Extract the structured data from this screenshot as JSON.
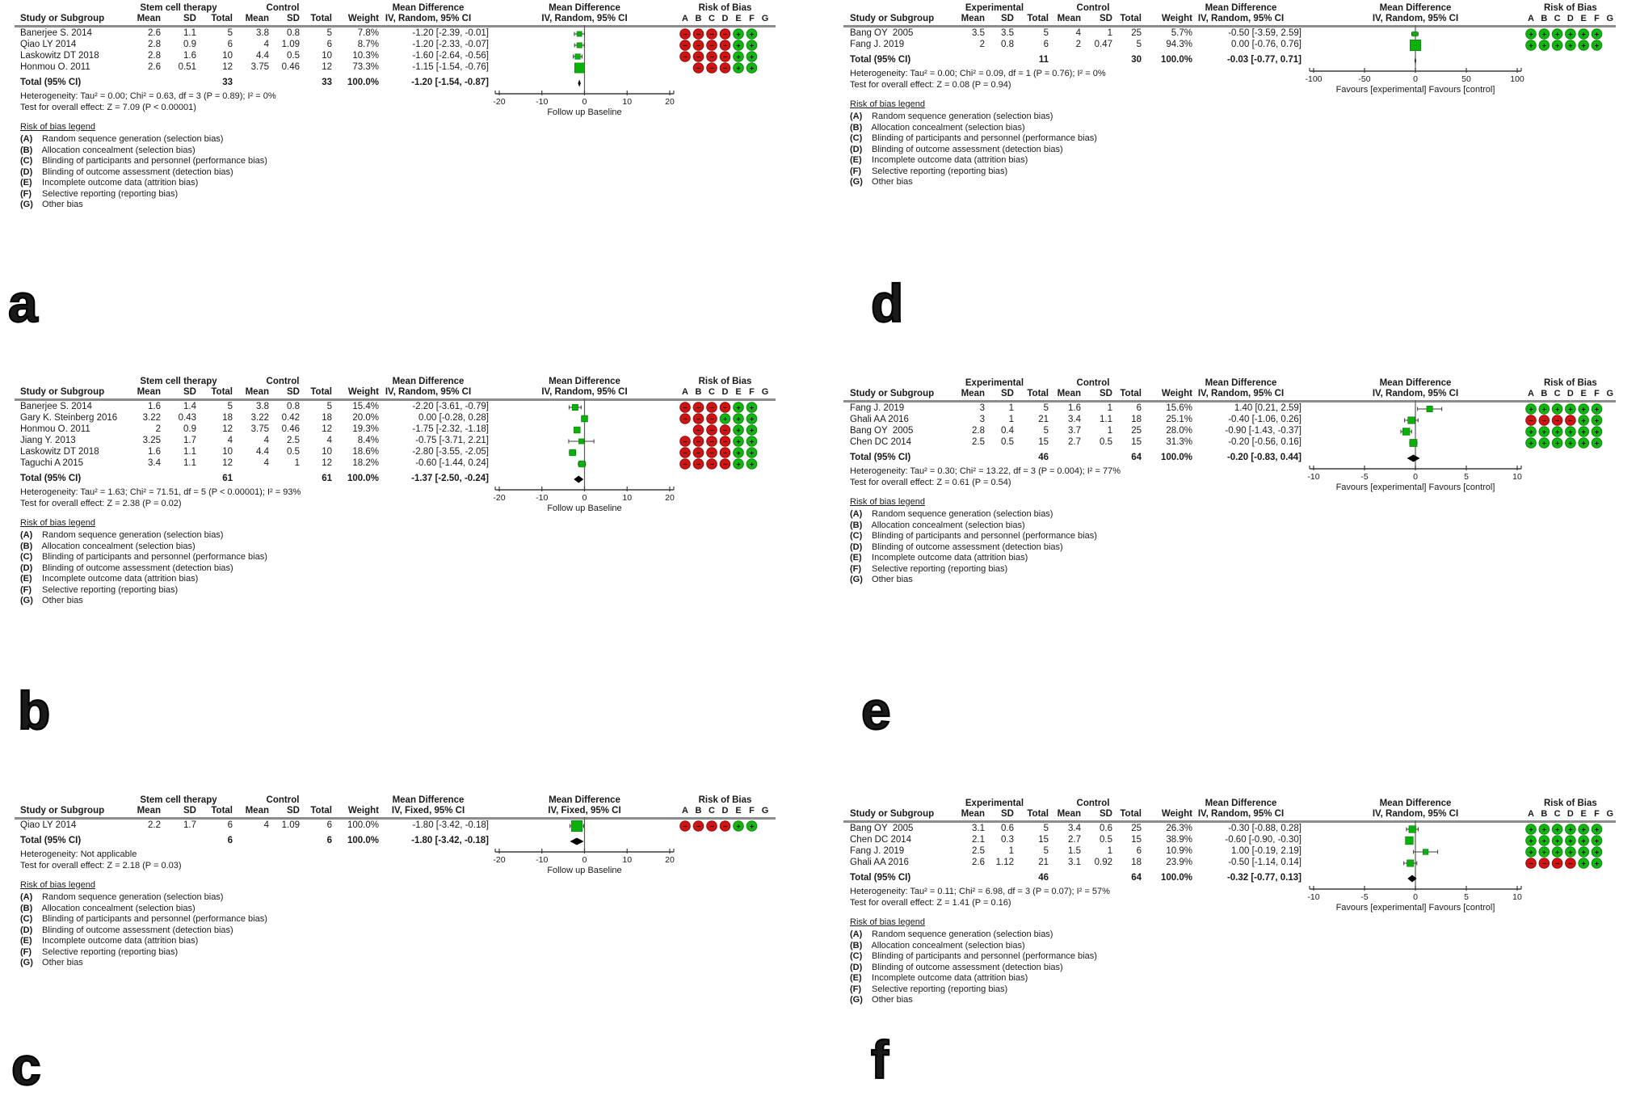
{
  "figure_title": "Forest plots of mean difference with risk of bias",
  "colors": {
    "low_risk": "#12b512",
    "low_risk_border": "#0a870a",
    "high_risk": "#d01313",
    "high_risk_border": "#8f0d0d",
    "marker_green": "#0cb00c",
    "marker_border": "#077a07",
    "diamond": "#000000",
    "axis": "#3c3c3c",
    "rule_gray": "#8c8c8c"
  },
  "rob_header": {
    "title": "Risk of Bias",
    "columns": [
      "A",
      "B",
      "C",
      "D",
      "E",
      "F",
      "G"
    ]
  },
  "rob_legend": {
    "title": "Risk of bias legend",
    "items": [
      {
        "key": "(A)",
        "text": " Random sequence generation (selection bias)"
      },
      {
        "key": "(B)",
        "text": " Allocation concealment (selection bias)"
      },
      {
        "key": "(C)",
        "text": " Blinding of participants and personnel (performance bias)"
      },
      {
        "key": "(D)",
        "text": " Blinding of outcome assessment (detection bias)"
      },
      {
        "key": "(E)",
        "text": " Incomplete outcome data (attrition bias)"
      },
      {
        "key": "(F)",
        "text": " Selective reporting (reporting bias)"
      },
      {
        "key": "(G)",
        "text": " Other bias"
      }
    ]
  },
  "chart_data": [
    {
      "panel_label": "a",
      "type": "forest",
      "columns": {
        "study": "Study or Subgroup",
        "group1": "Stem cell therapy",
        "group2": "Control",
        "sub": [
          "Mean",
          "SD",
          "Total"
        ],
        "weight": "Weight",
        "effect": "Mean Difference",
        "effect_sub": "IV, Random, 95% CI"
      },
      "studies": [
        {
          "name": "Banerjee S. 2014",
          "g1": [
            "2.6",
            "1.1",
            "5"
          ],
          "g2": [
            "3.8",
            "0.8",
            "5"
          ],
          "weight": "7.8%",
          "weight_val": 7.8,
          "est": -1.2,
          "lo": -2.39,
          "hi": -0.01,
          "ci_text": "-1.20 [-2.39, -0.01]",
          "rob": [
            "-",
            "-",
            "-",
            "-",
            "+",
            "+",
            ""
          ]
        },
        {
          "name": "Qiao LY 2014",
          "g1": [
            "2.8",
            "0.9",
            "6"
          ],
          "g2": [
            "4",
            "1.09",
            "6"
          ],
          "weight": "8.7%",
          "weight_val": 8.7,
          "est": -1.2,
          "lo": -2.33,
          "hi": -0.07,
          "ci_text": "-1.20 [-2.33, -0.07]",
          "rob": [
            "-",
            "-",
            "-",
            "-",
            "+",
            "+",
            ""
          ]
        },
        {
          "name": "Laskowitz DT 2018",
          "g1": [
            "2.8",
            "1.6",
            "10"
          ],
          "g2": [
            "4.4",
            "0.5",
            "10"
          ],
          "weight": "10.3%",
          "weight_val": 10.3,
          "est": -1.6,
          "lo": -2.64,
          "hi": -0.56,
          "ci_text": "-1.60 [-2.64, -0.56]",
          "rob": [
            "-",
            "-",
            "-",
            "-",
            "+",
            "+",
            ""
          ]
        },
        {
          "name": "Honmou O. 2011",
          "g1": [
            "2.6",
            "0.51",
            "12"
          ],
          "g2": [
            "3.75",
            "0.46",
            "12"
          ],
          "weight": "73.3%",
          "weight_val": 73.3,
          "est": -1.15,
          "lo": -1.54,
          "hi": -0.76,
          "ci_text": "-1.15 [-1.54, -0.76]",
          "rob": [
            "",
            "-",
            "-",
            "-",
            "+",
            "+",
            ""
          ]
        }
      ],
      "total": {
        "label": "Total (95% CI)",
        "n1": "33",
        "n2": "33",
        "weight": "100.0%",
        "est": -1.2,
        "lo": -1.54,
        "hi": -0.87,
        "ci_text": "-1.20 [-1.54, -0.87]"
      },
      "heterogeneity": "Heterogeneity: Tau² = 0.00; Chi² = 0.63, df = 3 (P = 0.89); I² = 0%",
      "overall_test": "Test for overall effect: Z = 7.09 (P < 0.00001)",
      "axis": {
        "min": -20,
        "max": 20,
        "ticks": [
          -20,
          -10,
          0,
          10,
          20
        ],
        "label": "Follow up  Baseline"
      }
    },
    {
      "panel_label": "b",
      "type": "forest",
      "columns": {
        "study": "Study or Subgroup",
        "group1": "Stem cell therapy",
        "group2": "Control",
        "sub": [
          "Mean",
          "SD",
          "Total"
        ],
        "weight": "Weight",
        "effect": "Mean Difference",
        "effect_sub": "IV, Random, 95% CI"
      },
      "studies": [
        {
          "name": "Banerjee S. 2014",
          "g1": [
            "1.6",
            "1.4",
            "5"
          ],
          "g2": [
            "3.8",
            "0.8",
            "5"
          ],
          "weight": "15.4%",
          "weight_val": 15.4,
          "est": -2.2,
          "lo": -3.61,
          "hi": -0.79,
          "ci_text": "-2.20 [-3.61, -0.79]",
          "rob": [
            "-",
            "-",
            "-",
            "-",
            "+",
            "+",
            ""
          ]
        },
        {
          "name": "Gary K. Steinberg 2016",
          "g1": [
            "3.22",
            "0.43",
            "18"
          ],
          "g2": [
            "3.22",
            "0.42",
            "18"
          ],
          "weight": "20.0%",
          "weight_val": 20.0,
          "est": 0.0,
          "lo": -0.28,
          "hi": 0.28,
          "ci_text": "0.00 [-0.28, 0.28]",
          "rob": [
            "-",
            "-",
            "-",
            "+",
            "+",
            "+",
            ""
          ]
        },
        {
          "name": "Honmou O. 2011",
          "g1": [
            "2",
            "0.9",
            "12"
          ],
          "g2": [
            "3.75",
            "0.46",
            "12"
          ],
          "weight": "19.3%",
          "weight_val": 19.3,
          "est": -1.75,
          "lo": -2.32,
          "hi": -1.18,
          "ci_text": "-1.75 [-2.32, -1.18]",
          "rob": [
            "",
            "-",
            "-",
            "-",
            "+",
            "+",
            ""
          ]
        },
        {
          "name": "Jiang Y. 2013",
          "g1": [
            "3.25",
            "1.7",
            "4"
          ],
          "g2": [
            "4",
            "2.5",
            "4"
          ],
          "weight": "8.4%",
          "weight_val": 8.4,
          "est": -0.75,
          "lo": -3.71,
          "hi": 2.21,
          "ci_text": "-0.75 [-3.71, 2.21]",
          "rob": [
            "-",
            "-",
            "-",
            "-",
            "+",
            "+",
            ""
          ]
        },
        {
          "name": "Laskowitz DT 2018",
          "g1": [
            "1.6",
            "1.1",
            "10"
          ],
          "g2": [
            "4.4",
            "0.5",
            "10"
          ],
          "weight": "18.6%",
          "weight_val": 18.6,
          "est": -2.8,
          "lo": -3.55,
          "hi": -2.05,
          "ci_text": "-2.80 [-3.55, -2.05]",
          "rob": [
            "-",
            "-",
            "-",
            "-",
            "+",
            "+",
            ""
          ]
        },
        {
          "name": "Taguchi A 2015",
          "g1": [
            "3.4",
            "1.1",
            "12"
          ],
          "g2": [
            "4",
            "1",
            "12"
          ],
          "weight": "18.2%",
          "weight_val": 18.2,
          "est": -0.6,
          "lo": -1.44,
          "hi": 0.24,
          "ci_text": "-0.60 [-1.44, 0.24]",
          "rob": [
            "-",
            "-",
            "-",
            "-",
            "+",
            "+",
            ""
          ]
        }
      ],
      "total": {
        "label": "Total (95% CI)",
        "n1": "61",
        "n2": "61",
        "weight": "100.0%",
        "est": -1.37,
        "lo": -2.5,
        "hi": -0.24,
        "ci_text": "-1.37 [-2.50, -0.24]"
      },
      "heterogeneity": "Heterogeneity: Tau² = 1.63; Chi² = 71.51, df = 5 (P < 0.00001); I² = 93%",
      "overall_test": "Test for overall effect: Z = 2.38 (P = 0.02)",
      "axis": {
        "min": -20,
        "max": 20,
        "ticks": [
          -20,
          -10,
          0,
          10,
          20
        ],
        "label": "Follow up  Baseline"
      }
    },
    {
      "panel_label": "c",
      "type": "forest",
      "columns": {
        "study": "Study or Subgroup",
        "group1": "Stem cell therapy",
        "group2": "Control",
        "sub": [
          "Mean",
          "SD",
          "Total"
        ],
        "weight": "Weight",
        "effect": "Mean Difference",
        "effect_sub": "IV, Fixed, 95% CI"
      },
      "studies": [
        {
          "name": "Qiao LY 2014",
          "g1": [
            "2.2",
            "1.7",
            "6"
          ],
          "g2": [
            "4",
            "1.09",
            "6"
          ],
          "weight": "100.0%",
          "weight_val": 100.0,
          "est": -1.8,
          "lo": -3.42,
          "hi": -0.18,
          "ci_text": "-1.80 [-3.42, -0.18]",
          "rob": [
            "-",
            "-",
            "-",
            "-",
            "+",
            "+",
            ""
          ]
        }
      ],
      "total": {
        "label": "Total (95% CI)",
        "n1": "6",
        "n2": "6",
        "weight": "100.0%",
        "est": -1.8,
        "lo": -3.42,
        "hi": -0.18,
        "ci_text": "-1.80 [-3.42, -0.18]"
      },
      "heterogeneity": "Heterogeneity: Not applicable",
      "overall_test": "Test for overall effect: Z = 2.18 (P = 0.03)",
      "axis": {
        "min": -20,
        "max": 20,
        "ticks": [
          -20,
          -10,
          0,
          10,
          20
        ],
        "label": "Follow up  Baseline"
      }
    },
    {
      "panel_label": "d",
      "type": "forest",
      "columns": {
        "study": "Study or Subgroup",
        "group1": "Experimental",
        "group2": "Control",
        "sub": [
          "Mean",
          "SD",
          "Total"
        ],
        "weight": "Weight",
        "effect": "Mean Difference",
        "effect_sub": "IV, Random, 95% CI"
      },
      "studies": [
        {
          "name": "Bang OY  2005",
          "g1": [
            "3.5",
            "3.5",
            "5"
          ],
          "g2": [
            "4",
            "1",
            "25"
          ],
          "weight": "5.7%",
          "weight_val": 5.7,
          "est": -0.5,
          "lo": -3.59,
          "hi": 2.59,
          "ci_text": "-0.50 [-3.59, 2.59]",
          "rob": [
            "+",
            "+",
            "+",
            "+",
            "+",
            "+",
            ""
          ]
        },
        {
          "name": "Fang J. 2019",
          "g1": [
            "2",
            "0.8",
            "6"
          ],
          "g2": [
            "2",
            "0.47",
            "5"
          ],
          "weight": "94.3%",
          "weight_val": 94.3,
          "est": 0.0,
          "lo": -0.76,
          "hi": 0.76,
          "ci_text": "0.00 [-0.76, 0.76]",
          "rob": [
            "+",
            "+",
            "+",
            "+",
            "+",
            "+",
            ""
          ]
        }
      ],
      "total": {
        "label": "Total (95% CI)",
        "n1": "11",
        "n2": "30",
        "weight": "100.0%",
        "est": -0.03,
        "lo": -0.77,
        "hi": 0.71,
        "ci_text": "-0.03 [-0.77, 0.71]"
      },
      "heterogeneity": "Heterogeneity: Tau² = 0.00; Chi² = 0.09, df = 1 (P = 0.76); I² = 0%",
      "overall_test": "Test for overall effect: Z = 0.08 (P = 0.94)",
      "axis": {
        "min": -100,
        "max": 100,
        "ticks": [
          -100,
          -50,
          0,
          50,
          100
        ],
        "label": "Favours [experimental]  Favours [control]"
      }
    },
    {
      "panel_label": "e",
      "type": "forest",
      "columns": {
        "study": "Study or Subgroup",
        "group1": "Experimental",
        "group2": "Control",
        "sub": [
          "Mean",
          "SD",
          "Total"
        ],
        "weight": "Weight",
        "effect": "Mean Difference",
        "effect_sub": "IV, Random, 95% CI"
      },
      "studies": [
        {
          "name": "Fang J. 2019",
          "g1": [
            "3",
            "1",
            "5"
          ],
          "g2": [
            "1.6",
            "1",
            "6"
          ],
          "weight": "15.6%",
          "weight_val": 15.6,
          "est": 1.4,
          "lo": 0.21,
          "hi": 2.59,
          "ci_text": "1.40 [0.21, 2.59]",
          "rob": [
            "+",
            "+",
            "+",
            "+",
            "+",
            "+",
            ""
          ]
        },
        {
          "name": "Ghali AA 2016",
          "g1": [
            "3",
            "1",
            "21"
          ],
          "g2": [
            "3.4",
            "1.1",
            "18"
          ],
          "weight": "25.1%",
          "weight_val": 25.1,
          "est": -0.4,
          "lo": -1.06,
          "hi": 0.26,
          "ci_text": "-0.40 [-1.06, 0.26]",
          "rob": [
            "-",
            "-",
            "-",
            "-",
            "+",
            "+",
            ""
          ]
        },
        {
          "name": "Bang OY  2005",
          "g1": [
            "2.8",
            "0.4",
            "5"
          ],
          "g2": [
            "3.7",
            "1",
            "25"
          ],
          "weight": "28.0%",
          "weight_val": 28.0,
          "est": -0.9,
          "lo": -1.43,
          "hi": -0.37,
          "ci_text": "-0.90 [-1.43, -0.37]",
          "rob": [
            "+",
            "+",
            "+",
            "+",
            "+",
            "+",
            ""
          ]
        },
        {
          "name": "Chen DC 2014",
          "g1": [
            "2.5",
            "0.5",
            "15"
          ],
          "g2": [
            "2.7",
            "0.5",
            "15"
          ],
          "weight": "31.3%",
          "weight_val": 31.3,
          "est": -0.2,
          "lo": -0.56,
          "hi": 0.16,
          "ci_text": "-0.20 [-0.56, 0.16]",
          "rob": [
            "+",
            "+",
            "+",
            "+",
            "+",
            "+",
            ""
          ]
        }
      ],
      "total": {
        "label": "Total (95% CI)",
        "n1": "46",
        "n2": "64",
        "weight": "100.0%",
        "est": -0.2,
        "lo": -0.83,
        "hi": 0.44,
        "ci_text": "-0.20 [-0.83, 0.44]"
      },
      "heterogeneity": "Heterogeneity: Tau² = 0.30; Chi² = 13.22, df = 3 (P = 0.004); I² = 77%",
      "overall_test": "Test for overall effect: Z = 0.61 (P = 0.54)",
      "axis": {
        "min": -10,
        "max": 10,
        "ticks": [
          -10,
          -5,
          0,
          5,
          10
        ],
        "label": "Favours [experimental]  Favours [control]"
      }
    },
    {
      "panel_label": "f",
      "type": "forest",
      "columns": {
        "study": "Study or Subgroup",
        "group1": "Experimental",
        "group2": "Control",
        "sub": [
          "Mean",
          "SD",
          "Total"
        ],
        "weight": "Weight",
        "effect": "Mean Difference",
        "effect_sub": "IV, Random, 95% CI"
      },
      "studies": [
        {
          "name": "Bang OY  2005",
          "g1": [
            "3.1",
            "0.6",
            "5"
          ],
          "g2": [
            "3.4",
            "0.6",
            "25"
          ],
          "weight": "26.3%",
          "weight_val": 26.3,
          "est": -0.3,
          "lo": -0.88,
          "hi": 0.28,
          "ci_text": "-0.30 [-0.88, 0.28]",
          "rob": [
            "+",
            "+",
            "+",
            "+",
            "+",
            "+",
            ""
          ]
        },
        {
          "name": "Chen DC 2014",
          "g1": [
            "2.1",
            "0.3",
            "15"
          ],
          "g2": [
            "2.7",
            "0.5",
            "15"
          ],
          "weight": "38.9%",
          "weight_val": 38.9,
          "est": -0.6,
          "lo": -0.9,
          "hi": -0.3,
          "ci_text": "-0.60 [-0.90, -0.30]",
          "rob": [
            "+",
            "+",
            "+",
            "+",
            "+",
            "+",
            ""
          ]
        },
        {
          "name": "Fang J. 2019",
          "g1": [
            "2.5",
            "1",
            "5"
          ],
          "g2": [
            "1.5",
            "1",
            "6"
          ],
          "weight": "10.9%",
          "weight_val": 10.9,
          "est": 1.0,
          "lo": -0.19,
          "hi": 2.19,
          "ci_text": "1.00 [-0.19, 2.19]",
          "rob": [
            "+",
            "+",
            "+",
            "+",
            "+",
            "+",
            ""
          ]
        },
        {
          "name": "Ghali AA 2016",
          "g1": [
            "2.6",
            "1.12",
            "21"
          ],
          "g2": [
            "3.1",
            "0.92",
            "18"
          ],
          "weight": "23.9%",
          "weight_val": 23.9,
          "est": -0.5,
          "lo": -1.14,
          "hi": 0.14,
          "ci_text": "-0.50 [-1.14, 0.14]",
          "rob": [
            "-",
            "-",
            "-",
            "-",
            "+",
            "+",
            ""
          ]
        }
      ],
      "total": {
        "label": "Total (95% CI)",
        "n1": "46",
        "n2": "64",
        "weight": "100.0%",
        "est": -0.32,
        "lo": -0.77,
        "hi": 0.13,
        "ci_text": "-0.32 [-0.77, 0.13]"
      },
      "heterogeneity": "Heterogeneity: Tau² = 0.11; Chi² = 6.98, df = 3 (P = 0.07); I² = 57%",
      "overall_test": "Test for overall effect: Z = 1.41 (P = 0.16)",
      "axis": {
        "min": -10,
        "max": 10,
        "ticks": [
          -10,
          -5,
          0,
          5,
          10
        ],
        "label": "Favours [experimental]  Favours [control]"
      }
    }
  ]
}
